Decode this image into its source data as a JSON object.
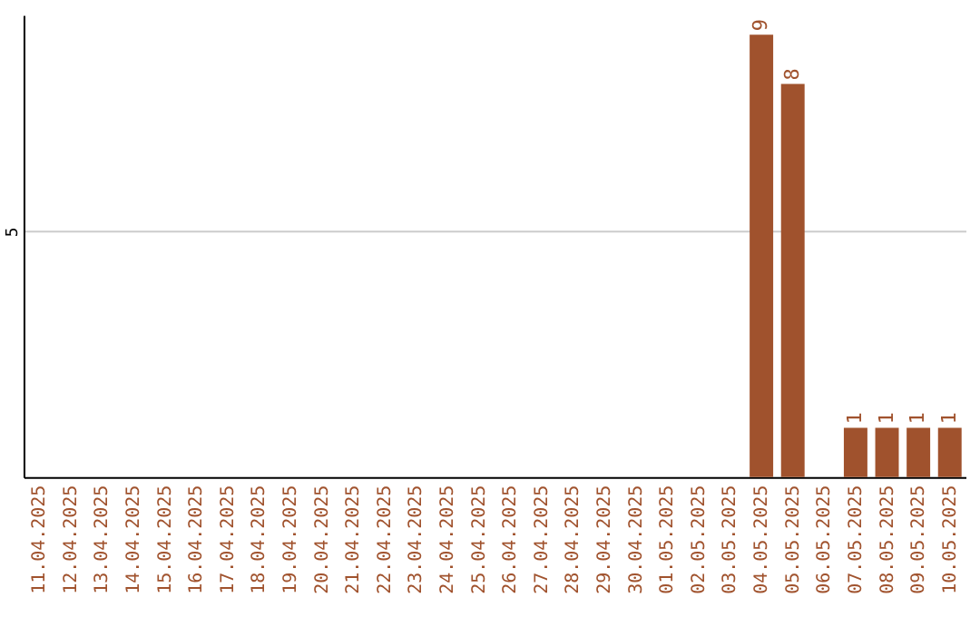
{
  "chart_data": {
    "type": "bar",
    "categories": [
      "11.04.2025",
      "12.04.2025",
      "13.04.2025",
      "14.04.2025",
      "15.04.2025",
      "16.04.2025",
      "17.04.2025",
      "18.04.2025",
      "19.04.2025",
      "20.04.2025",
      "21.04.2025",
      "22.04.2025",
      "23.04.2025",
      "24.04.2025",
      "25.04.2025",
      "26.04.2025",
      "27.04.2025",
      "28.04.2025",
      "29.04.2025",
      "30.04.2025",
      "01.05.2025",
      "02.05.2025",
      "03.05.2025",
      "04.05.2025",
      "05.05.2025",
      "06.05.2025",
      "07.05.2025",
      "08.05.2025",
      "09.05.2025",
      "10.05.2025"
    ],
    "values": [
      null,
      null,
      null,
      null,
      null,
      null,
      null,
      null,
      null,
      null,
      null,
      null,
      null,
      null,
      null,
      null,
      null,
      null,
      null,
      null,
      null,
      null,
      null,
      9,
      8,
      null,
      1,
      1,
      1,
      1
    ],
    "color": "#a0522d",
    "ylim": [
      0,
      9.4
    ],
    "yticks": [
      5
    ],
    "grid": "y",
    "data_labels": true
  }
}
